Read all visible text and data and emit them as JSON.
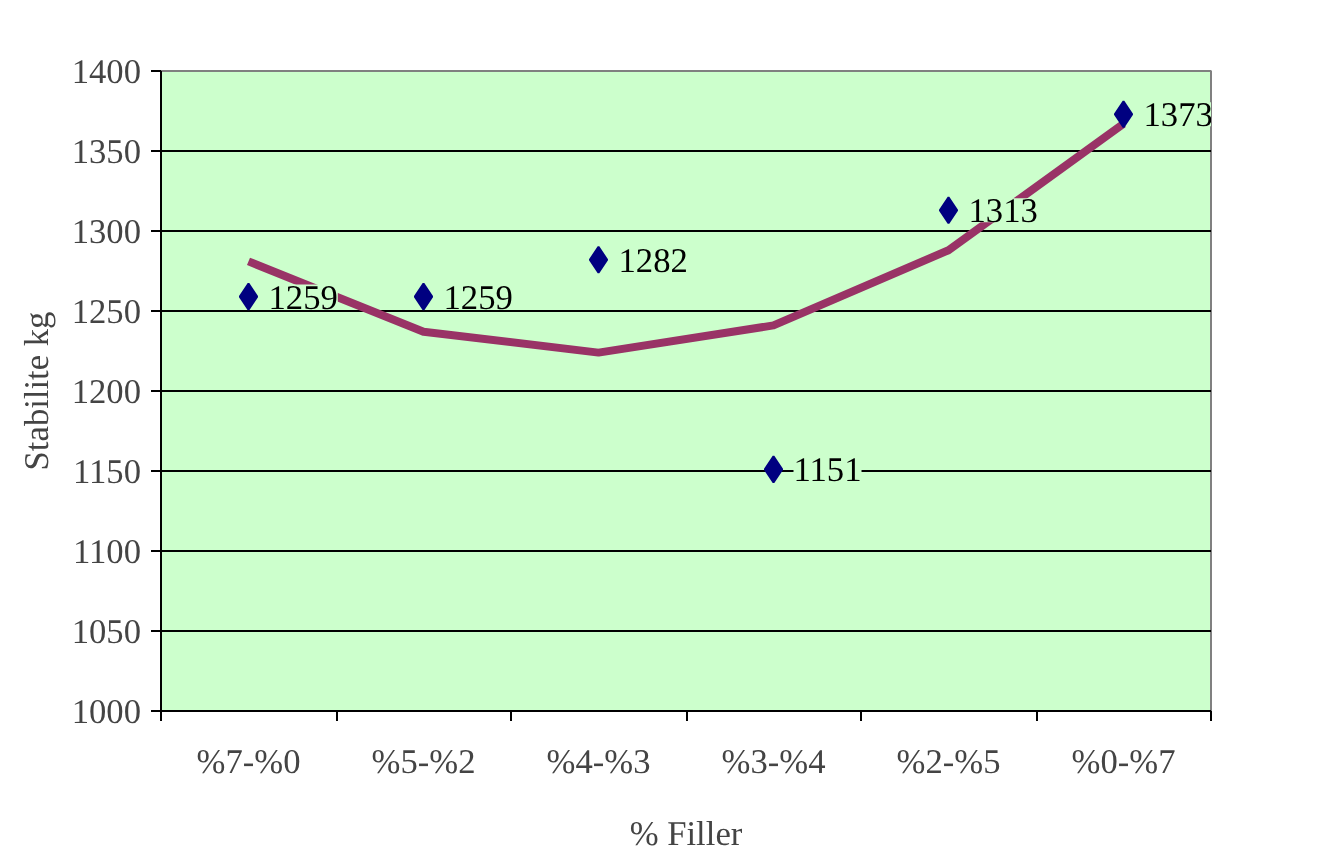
{
  "chart_data": {
    "type": "scatter",
    "xlabel": "% Filler",
    "ylabel": "Stabilite kg",
    "categories": [
      "%7-%0",
      "%5-%2",
      "%4-%3",
      "%3-%4",
      "%2-%5",
      "%0-%7"
    ],
    "ylim": [
      1000,
      1400
    ],
    "yticks": [
      1000,
      1050,
      1100,
      1150,
      1200,
      1250,
      1300,
      1350,
      1400
    ],
    "grid": "y",
    "marker": "diamond",
    "series": [
      {
        "color": "#000080",
        "values": [
          1259,
          1259,
          1282,
          1151,
          1313,
          1373
        ],
        "value_labels": [
          "1259",
          "1259",
          "1282",
          "1151",
          "1313",
          "1373"
        ]
      },
      {
        "type": "line",
        "marker": "none",
        "color": "#993366",
        "x": [
          "%7-%0",
          "%5-%2",
          "%4-%3",
          "%3-%4",
          "%2-%5",
          "%0-%7"
        ],
        "values": [
          1281,
          1237,
          1224,
          1241,
          1288,
          1367
        ]
      }
    ]
  }
}
